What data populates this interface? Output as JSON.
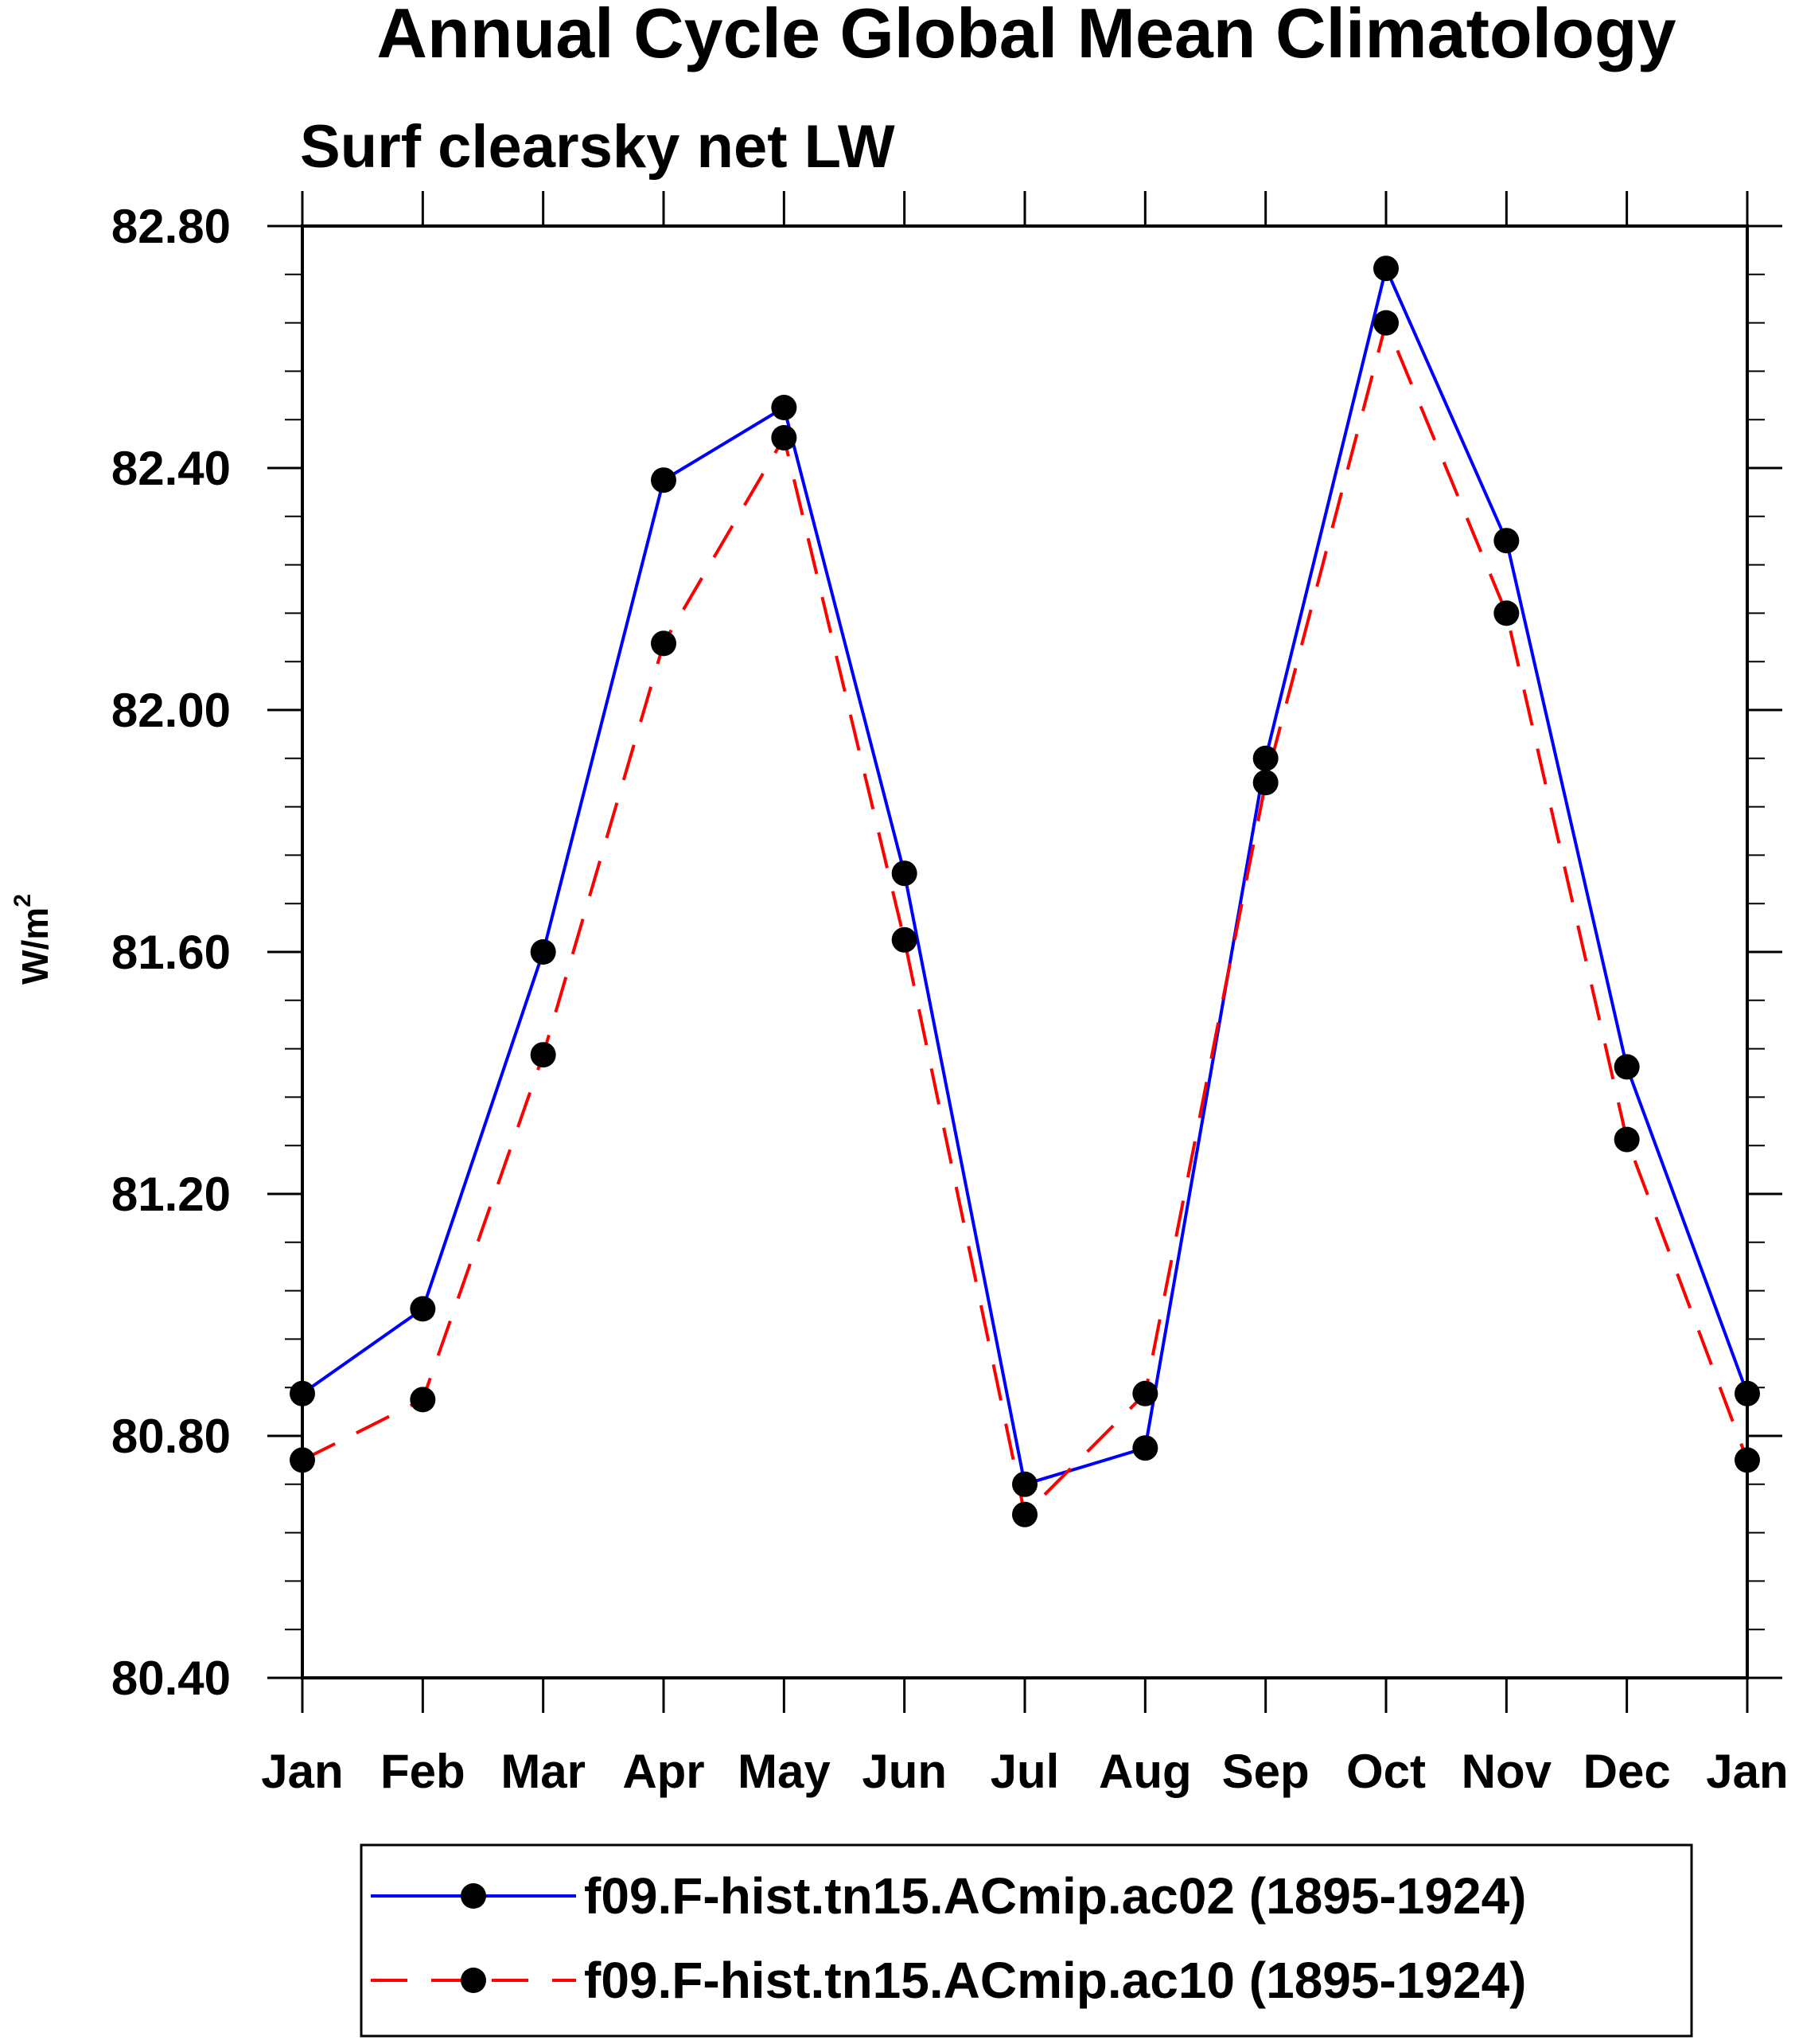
{
  "chart_data": {
    "type": "line",
    "title": "Annual Cycle Global Mean Climatology",
    "subtitle": "Surf clearsky net LW",
    "ylabel": "W/m",
    "ylabel_sup": "2",
    "xlabel": "",
    "categories": [
      "Jan",
      "Feb",
      "Mar",
      "Apr",
      "May",
      "Jun",
      "Jul",
      "Aug",
      "Sep",
      "Oct",
      "Nov",
      "Dec",
      "Jan"
    ],
    "ylim": [
      80.4,
      82.8
    ],
    "yticks": [
      80.4,
      80.8,
      81.2,
      81.6,
      82.0,
      82.4,
      82.8
    ],
    "ytick_labels": [
      "80.40",
      "80.80",
      "81.20",
      "81.60",
      "82.00",
      "82.40",
      "82.80"
    ],
    "series": [
      {
        "name": "f09.F-hist.tn15.ACmip.ac02 (1895-1924)",
        "color": "#0000ff",
        "dash": "solid",
        "values": [
          80.87,
          81.01,
          81.6,
          82.38,
          82.5,
          81.73,
          80.72,
          80.78,
          81.92,
          82.73,
          82.28,
          81.41,
          80.87
        ]
      },
      {
        "name": "f09.F-hist.tn15.ACmip.ac10 (1895-1924)",
        "color": "#ff0000",
        "dash": "dashed",
        "values": [
          80.76,
          80.86,
          81.43,
          82.11,
          82.45,
          81.62,
          80.67,
          80.87,
          81.88,
          82.64,
          82.16,
          81.29,
          80.76
        ]
      }
    ],
    "legend_position": "bottom-center"
  }
}
